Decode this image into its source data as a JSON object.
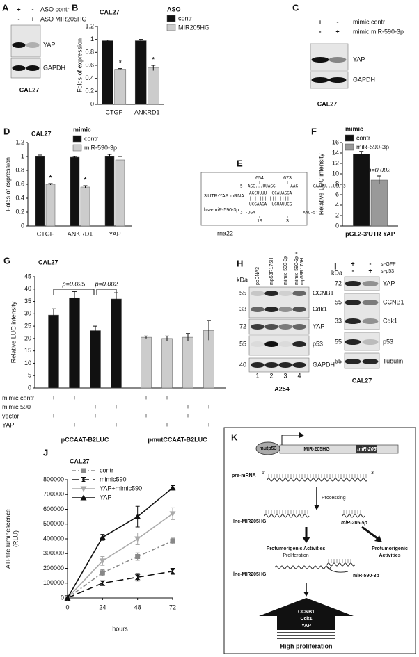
{
  "chart_data": [
    {
      "panel": "B",
      "type": "bar",
      "title": "CAL27",
      "ylabel": "Folds of expression",
      "legend_title": "ASO",
      "categories": [
        "CTGF",
        "ANKRD1"
      ],
      "series": [
        {
          "name": "contr",
          "color": "#111111",
          "values": [
            0.98,
            0.98
          ],
          "errors": [
            0.01,
            0.02
          ]
        },
        {
          "name": "MIR205HG",
          "color": "#cccccc",
          "values": [
            0.54,
            0.56
          ],
          "errors": [
            0.01,
            0.04
          ],
          "annotations": [
            "*",
            "*"
          ]
        }
      ],
      "ylim": [
        0,
        1.2
      ],
      "yticks": [
        0,
        0.2,
        0.4,
        0.6,
        0.8,
        1,
        1.2
      ]
    },
    {
      "panel": "D",
      "type": "bar",
      "title": "CAL27",
      "ylabel": "Folds of expression",
      "legend_title": "mimic",
      "categories": [
        "CTGF",
        "ANKRD1",
        "YAP"
      ],
      "series": [
        {
          "name": "contr",
          "color": "#111111",
          "values": [
            1,
            0.99,
            1
          ],
          "errors": [
            0.02,
            0.01,
            0.03
          ]
        },
        {
          "name": "miR-590-3p",
          "color": "#cccccc",
          "values": [
            0.6,
            0.56,
            0.95
          ],
          "errors": [
            0.01,
            0.02,
            0.05
          ],
          "annotations": [
            "*",
            "*",
            null
          ]
        }
      ],
      "ylim": [
        0,
        1.2
      ],
      "yticks": [
        0,
        0.2,
        0.4,
        0.6,
        0.8,
        1,
        1.2
      ]
    },
    {
      "panel": "F",
      "type": "bar",
      "ylabel": "Relative LUC intensity",
      "legend_title": "mimic",
      "categories": [
        "pGL2-3'UTR YAP"
      ],
      "series": [
        {
          "name": "contr",
          "color": "#111111",
          "values": [
            13.8
          ],
          "errors": [
            0.5
          ]
        },
        {
          "name": "miR-590-3p",
          "color": "#999999",
          "values": [
            8.8
          ],
          "errors": [
            0.8
          ],
          "annotations": [
            "p=0,002"
          ]
        }
      ],
      "ylim": [
        0,
        16
      ],
      "yticks": [
        0,
        2,
        4,
        6,
        8,
        10,
        12,
        14,
        16
      ]
    },
    {
      "panel": "G",
      "type": "grouped_bar",
      "title": "CAL27",
      "ylabel": "Relative LUC intensity",
      "series": [
        {
          "name": "pCCAAT-B2LUC",
          "color": "#111111",
          "values": [
            29.5,
            36.5,
            23.2,
            36
          ],
          "errors": [
            2.5,
            2.5,
            1.8,
            2.5
          ]
        },
        {
          "name": "pmutCCAAT-B2LUC",
          "color": "#cccccc",
          "values": [
            20.5,
            20,
            20.5,
            23.3
          ],
          "errors": [
            0.5,
            1,
            1.5,
            4
          ]
        }
      ],
      "conditions": [
        {
          "label": "mimic contr",
          "marks": [
            "+",
            "+",
            null,
            null
          ]
        },
        {
          "label": "mimic 590",
          "marks": [
            null,
            null,
            "+",
            "+"
          ]
        },
        {
          "label": "vector",
          "marks": [
            "+",
            null,
            "+",
            null
          ]
        },
        {
          "label": "YAP",
          "marks": [
            null,
            "+",
            null,
            "+"
          ]
        }
      ],
      "comparisons": [
        {
          "label": "p=0.025",
          "from": 0,
          "to": 2
        },
        {
          "label": "p=0.002",
          "from": 2,
          "to": 3
        }
      ],
      "ylim": [
        0,
        45
      ],
      "yticks": [
        0,
        5,
        10,
        15,
        20,
        25,
        30,
        35,
        40,
        45
      ]
    },
    {
      "panel": "J",
      "type": "line",
      "title": "CAL27",
      "xlabel": "hours",
      "ylabel": [
        "ATPlite luminescence",
        "(RLU)"
      ],
      "x": [
        0,
        24,
        48,
        72
      ],
      "xlim": [
        0,
        72
      ],
      "xticks": [
        0,
        24,
        48,
        72
      ],
      "ylim": [
        0,
        800000
      ],
      "yticks": [
        0,
        100000,
        200000,
        300000,
        400000,
        500000,
        600000,
        700000,
        800000
      ],
      "series": [
        {
          "name": "contr",
          "color": "#888888",
          "dash": "dashdot",
          "marker": "square",
          "values": [
            0,
            170000,
            280000,
            385000
          ],
          "errors": [
            0,
            20000,
            25000,
            20000
          ]
        },
        {
          "name": "mimic590",
          "color": "#111111",
          "dash": "dash",
          "marker": "bowtie",
          "values": [
            0,
            100000,
            140000,
            180000
          ],
          "errors": [
            0,
            15000,
            25000,
            20000
          ]
        },
        {
          "name": "YAP+mimic590",
          "color": "#aaaaaa",
          "dash": "solid",
          "marker": "triangle-down",
          "values": [
            0,
            250000,
            400000,
            570000
          ],
          "errors": [
            0,
            30000,
            40000,
            40000
          ]
        },
        {
          "name": "YAP",
          "color": "#111111",
          "dash": "solid",
          "marker": "triangle-up",
          "values": [
            0,
            410000,
            550000,
            745000
          ],
          "errors": [
            0,
            20000,
            70000,
            15000
          ]
        }
      ]
    }
  ],
  "blots": [
    {
      "panel": "A",
      "header_rows": [
        {
          "marks": [
            "+",
            "-"
          ],
          "label": "ASO contr"
        },
        {
          "marks": [
            "-",
            "+"
          ],
          "label": "ASO MIR205HG"
        }
      ],
      "bands": [
        {
          "label": "YAP"
        },
        {
          "label": "GAPDH"
        }
      ],
      "cell": "CAL27"
    },
    {
      "panel": "C",
      "header_rows": [
        {
          "marks": [
            "+",
            "-"
          ],
          "label": "mimic contr"
        },
        {
          "marks": [
            "-",
            "+"
          ],
          "label": "mimic miR-590-3p"
        }
      ],
      "bands": [
        {
          "label": "YAP"
        },
        {
          "label": "GAPDH"
        }
      ],
      "cell": "CAL27"
    },
    {
      "panel": "H",
      "kda_label": "kDa",
      "lanes": [
        [
          "pcDNA3"
        ],
        [
          "mp53R175H"
        ],
        [
          "mimic 590-3p"
        ],
        [
          "mimic 590-3p +",
          "mp53R175H"
        ]
      ],
      "bands": [
        {
          "kda": 55,
          "label": "CCNB1"
        },
        {
          "kda": 33,
          "label": "Cdk1"
        },
        {
          "kda": 72,
          "label": "YAP"
        },
        {
          "kda": 55,
          "label": "p53"
        },
        {
          "kda": 40,
          "label": "GAPDH"
        }
      ],
      "lane_numbers": [
        1,
        2,
        3,
        4
      ],
      "cell": "A254"
    },
    {
      "panel": "I",
      "kda_label": "kDa",
      "header_rows": [
        {
          "marks": [
            "+",
            "-"
          ],
          "label": "si-GFP"
        },
        {
          "marks": [
            "-",
            "+"
          ],
          "label": "si-p53"
        }
      ],
      "bands": [
        {
          "kda": 72,
          "label": "YAP"
        },
        {
          "kda": 55,
          "label": "CCNB1"
        },
        {
          "kda": 33,
          "label": "Cdk1"
        },
        {
          "kda": 55,
          "label": "p53"
        },
        {
          "kda": 55,
          "label": "Tubulin"
        }
      ],
      "cell": "CAL27"
    }
  ],
  "sequence": {
    "panel": "E",
    "target_label": "3'UTR-YAP mRNA",
    "mirna_label": "hsa-miR-590-3p",
    "target_positions": [
      654,
      673
    ],
    "mirna_positions": [
      19,
      3
    ],
    "alignment": [
      "5'-AGC...UUAGG      AAG      CAAUU...UGU-3'",
      "AGCUUUU  GCAUAGGA",
      "||||||| ||||||||",
      "UCGAAGA  UGUAUUCG",
      "3'-UGA                   AAU-5'"
    ],
    "tool": "rna22"
  },
  "diagram": {
    "panel": "K",
    "promoter": "mutp53",
    "gene": "MIR-205HG",
    "mirna_gene": "miR-205",
    "transcript": "pre-mRNA",
    "five_prime": "5'",
    "three_prime": "3'",
    "step": "Processing",
    "lnc": "lnc-MIR205HG",
    "mir205": "miR-205-5p",
    "left_effect": "Protumorigenic Activities",
    "left_effect_note": "Proliferation",
    "right_effect": [
      "Protumorigenic",
      "Activities"
    ],
    "sponge_lnc": "lnc-MIR205HG",
    "sponge_mir": "miR-590-3p",
    "targets": [
      "CCNB1",
      "Cdk1",
      "YAP"
    ],
    "outcome": "High proliferation"
  }
}
